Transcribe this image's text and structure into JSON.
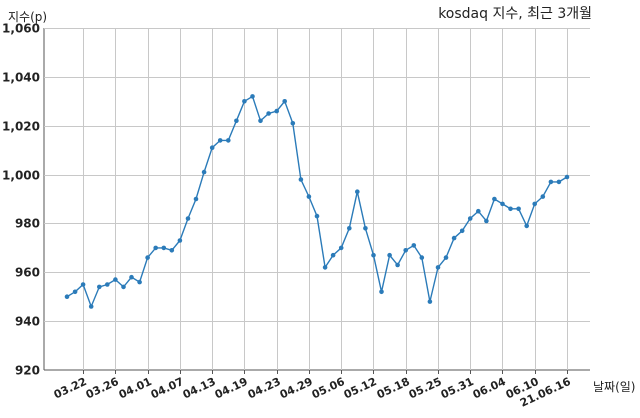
{
  "chart_data": {
    "type": "line",
    "title": "kosdaq 지수, 최근 3개월",
    "ylabel": "지수(p)",
    "xlabel": "날짜(일)",
    "ylim": [
      920,
      1060
    ],
    "yticks": [
      920,
      940,
      960,
      980,
      "1,000",
      "1,020",
      "1,040",
      "1,060"
    ],
    "ytick_values": [
      920,
      940,
      960,
      980,
      1000,
      1020,
      1040,
      1060
    ],
    "xticks": [
      "03.22",
      "03.26",
      "04.01",
      "04.07",
      "04.13",
      "04.19",
      "04.23",
      "04.29",
      "05.06",
      "05.12",
      "05.18",
      "05.25",
      "05.31",
      "06.04",
      "06.10",
      "21.06.16"
    ],
    "xtick_index": [
      2,
      6,
      10,
      14,
      18,
      22,
      26,
      30,
      34,
      38,
      42,
      46,
      50,
      54,
      58,
      62
    ],
    "grid": true,
    "series": [
      {
        "values": [
          950,
          952,
          955,
          946,
          954,
          955,
          957,
          954,
          958,
          956,
          966,
          970,
          970,
          969,
          973,
          982,
          990,
          1001,
          1011,
          1014,
          1014,
          1022,
          1030,
          1032,
          1022,
          1025,
          1026,
          1030,
          1021,
          998,
          991,
          983,
          962,
          967,
          970,
          978,
          993,
          978,
          967,
          952,
          967,
          963,
          969,
          971,
          966,
          948,
          962,
          966,
          974,
          977,
          982,
          985,
          981,
          990,
          988,
          986,
          986,
          979,
          988,
          991,
          997,
          997,
          999
        ]
      }
    ]
  }
}
